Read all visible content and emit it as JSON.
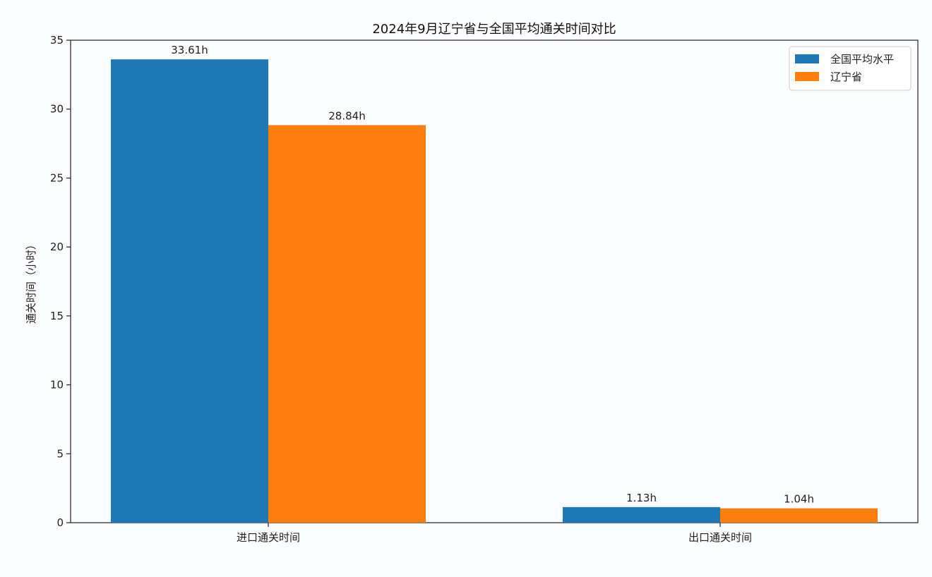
{
  "chart_data": {
    "type": "bar",
    "title": "2024年9月辽宁省与全国平均通关时间对比",
    "xlabel": "",
    "ylabel": "通关时间（小时）",
    "categories": [
      "进口通关时间",
      "出口通关时间"
    ],
    "ylim": [
      0,
      35
    ],
    "yticks": [
      0,
      5,
      10,
      15,
      20,
      25,
      30,
      35
    ],
    "grid": false,
    "legend_position": "top-right",
    "series": [
      {
        "name": "全国平均水平",
        "color": "#1f77b4",
        "values": [
          33.61,
          1.13
        ],
        "labels": [
          "33.61h",
          "1.13h"
        ]
      },
      {
        "name": "辽宁省",
        "color": "#ff7f0e",
        "values": [
          28.84,
          1.04
        ],
        "labels": [
          "28.84h",
          "1.04h"
        ]
      }
    ]
  }
}
